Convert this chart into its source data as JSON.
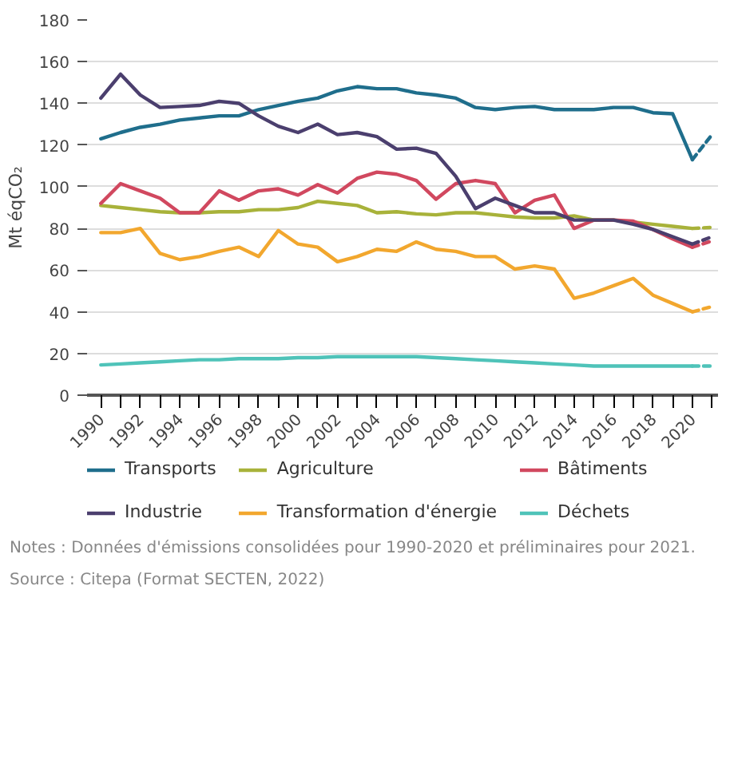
{
  "chart_data": {
    "type": "line",
    "ylabel": "Mt éqCO₂",
    "x": [
      1990,
      1991,
      1992,
      1993,
      1994,
      1995,
      1996,
      1997,
      1998,
      1999,
      2000,
      2001,
      2002,
      2003,
      2004,
      2005,
      2006,
      2007,
      2008,
      2009,
      2010,
      2011,
      2012,
      2013,
      2014,
      2015,
      2016,
      2017,
      2018,
      2019,
      2020,
      2021
    ],
    "xlim": [
      1989.3,
      2021.3
    ],
    "xticks": [
      1990,
      {
        "value": 1991,
        "label": null
      },
      1992,
      {
        "value": 1993,
        "label": null
      },
      1994,
      {
        "value": 1995,
        "label": null
      },
      1996,
      {
        "value": 1997,
        "label": null
      },
      1998,
      {
        "value": 1999,
        "label": null
      },
      2000,
      {
        "value": 2001,
        "label": null
      },
      2002,
      {
        "value": 2003,
        "label": null
      },
      2004,
      {
        "value": 2005,
        "label": null
      },
      2006,
      {
        "value": 2007,
        "label": null
      },
      2008,
      {
        "value": 2009,
        "label": null
      },
      2010,
      {
        "value": 2011,
        "label": null
      },
      2012,
      {
        "value": 2013,
        "label": null
      },
      2014,
      {
        "value": 2015,
        "label": null
      },
      2016,
      {
        "value": 2017,
        "label": null
      },
      2018,
      {
        "value": 2019,
        "label": null
      },
      2020,
      {
        "value": 2021,
        "label": null
      }
    ],
    "ylim": [
      0,
      180
    ],
    "yticks": [
      0,
      20,
      40,
      60,
      80,
      100,
      120,
      140,
      160,
      180
    ],
    "grid": "y",
    "legend": "bottom",
    "line_style": "solid",
    "marker": "none",
    "series": [
      {
        "name": "Transports",
        "color": "#1f6e8c",
        "values": [
          123,
          126,
          128.5,
          130,
          132,
          133,
          134,
          134,
          137,
          139,
          141,
          142.5,
          146,
          148,
          147,
          147,
          145,
          144,
          142.5,
          138,
          137,
          138,
          138.5,
          137,
          137,
          137,
          138,
          138,
          135.5,
          135,
          113,
          null
        ]
      },
      {
        "name": "Agriculture",
        "color": "#a8b23a",
        "values": [
          91,
          90,
          89,
          88,
          87.5,
          87.5,
          88,
          88,
          89,
          89,
          90,
          93,
          92,
          91,
          87.5,
          88,
          87,
          86.5,
          87.5,
          87.5,
          86.5,
          85.5,
          85,
          85,
          86,
          84,
          84,
          83,
          82,
          81,
          80,
          null
        ]
      },
      {
        "name": "Bâtiments",
        "color": "#d1485f",
        "values": [
          92,
          101.5,
          98,
          94.5,
          87.5,
          87.5,
          98,
          93.5,
          98,
          99,
          96,
          101,
          97,
          104,
          107,
          106,
          103,
          94,
          101.5,
          103,
          101.5,
          87.5,
          93.5,
          96,
          80,
          84,
          84,
          83.5,
          79.5,
          75,
          71,
          null
        ]
      },
      {
        "name": "Industrie",
        "color": "#4b3f6e",
        "values": [
          142.5,
          154,
          144,
          138,
          138.5,
          139,
          141,
          140,
          134,
          129,
          126,
          130,
          125,
          126,
          124,
          118,
          118.5,
          116,
          105,
          89.5,
          94.5,
          91,
          87.5,
          87.5,
          84,
          84,
          84,
          82,
          79.5,
          76,
          72.5,
          null
        ]
      },
      {
        "name": "Transformation d'énergie",
        "color": "#f2a72e",
        "values": [
          78,
          78,
          80,
          68,
          65,
          66.5,
          69,
          71,
          66.5,
          79,
          72.5,
          71,
          64,
          66.5,
          70,
          69,
          73.5,
          70,
          69,
          66.5,
          66.5,
          60.5,
          62,
          60.5,
          46.5,
          49,
          52.5,
          56,
          48,
          44,
          40,
          null
        ]
      },
      {
        "name": "Déchets",
        "color": "#4fc3b9",
        "values": [
          14.5,
          15,
          15.5,
          16,
          16.5,
          17,
          17,
          17.5,
          17.5,
          17.5,
          18,
          18,
          18.5,
          18.5,
          18.5,
          18.5,
          18.5,
          18,
          17.5,
          17,
          16.5,
          16,
          15.5,
          15,
          14.5,
          14,
          14,
          14,
          14,
          14,
          14,
          null
        ]
      },
      {
        "color": "#1f6e8c",
        "line_style": "dashed",
        "values": [
          null,
          null,
          null,
          null,
          null,
          null,
          null,
          null,
          null,
          null,
          null,
          null,
          null,
          null,
          null,
          null,
          null,
          null,
          null,
          null,
          null,
          null,
          null,
          null,
          null,
          null,
          null,
          null,
          null,
          null,
          113,
          125
        ]
      },
      {
        "color": "#a8b23a",
        "line_style": "dashed",
        "values": [
          null,
          null,
          null,
          null,
          null,
          null,
          null,
          null,
          null,
          null,
          null,
          null,
          null,
          null,
          null,
          null,
          null,
          null,
          null,
          null,
          null,
          null,
          null,
          null,
          null,
          null,
          null,
          null,
          null,
          null,
          80,
          80.5
        ]
      },
      {
        "color": "#d1485f",
        "line_style": "dashed",
        "values": [
          null,
          null,
          null,
          null,
          null,
          null,
          null,
          null,
          null,
          null,
          null,
          null,
          null,
          null,
          null,
          null,
          null,
          null,
          null,
          null,
          null,
          null,
          null,
          null,
          null,
          null,
          null,
          null,
          null,
          null,
          71,
          74
        ]
      },
      {
        "color": "#4b3f6e",
        "line_style": "dashed",
        "values": [
          null,
          null,
          null,
          null,
          null,
          null,
          null,
          null,
          null,
          null,
          null,
          null,
          null,
          null,
          null,
          null,
          null,
          null,
          null,
          null,
          null,
          null,
          null,
          null,
          null,
          null,
          null,
          null,
          null,
          null,
          72.5,
          76
        ]
      },
      {
        "color": "#f2a72e",
        "line_style": "dashed",
        "values": [
          null,
          null,
          null,
          null,
          null,
          null,
          null,
          null,
          null,
          null,
          null,
          null,
          null,
          null,
          null,
          null,
          null,
          null,
          null,
          null,
          null,
          null,
          null,
          null,
          null,
          null,
          null,
          null,
          null,
          null,
          40,
          42.5
        ]
      },
      {
        "color": "#4fc3b9",
        "line_style": "dashed",
        "values": [
          null,
          null,
          null,
          null,
          null,
          null,
          null,
          null,
          null,
          null,
          null,
          null,
          null,
          null,
          null,
          null,
          null,
          null,
          null,
          null,
          null,
          null,
          null,
          null,
          null,
          null,
          null,
          null,
          null,
          null,
          14,
          14
        ]
      }
    ],
    "annotations": [
      "Notes : Données d'émissions consolidées pour 1990-2020 et préliminaires pour 2021.",
      "Source : Citepa (Format SECTEN, 2022)"
    ]
  }
}
